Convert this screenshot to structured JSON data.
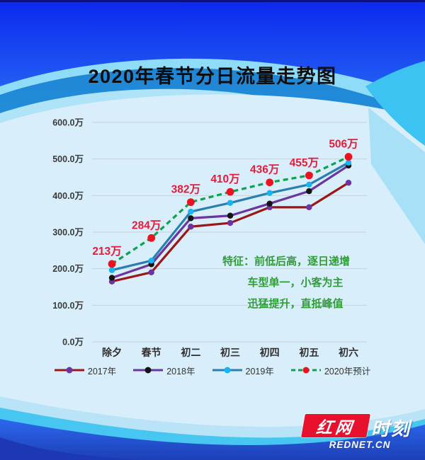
{
  "page": {
    "title": "2020年春节分日流量走势图"
  },
  "chart_data": {
    "type": "line",
    "title": "2020年春节分日流量走势图",
    "categories": [
      "除夕",
      "春节",
      "初二",
      "初三",
      "初四",
      "初五",
      "初六"
    ],
    "unit": "万",
    "ylim": [
      0,
      600
    ],
    "y_ticks": [
      "0.0万",
      "100.0万",
      "200.0万",
      "300.0万",
      "400.0万",
      "500.0万",
      "600.0万"
    ],
    "grid": true,
    "legend_position": "bottom",
    "series": [
      {
        "name": "2017年",
        "style": "solid",
        "color": "#9c1616",
        "marker_color": "#6a35a0",
        "values": [
          165,
          190,
          315,
          325,
          368,
          368,
          435
        ]
      },
      {
        "name": "2018年",
        "style": "solid",
        "color": "#6a35a0",
        "marker_color": "#141414",
        "values": [
          175,
          212,
          338,
          345,
          378,
          412,
          482
        ]
      },
      {
        "name": "2019年",
        "style": "solid",
        "color": "#2b7fb0",
        "marker_color": "#16b4f0",
        "values": [
          196,
          222,
          356,
          380,
          407,
          430,
          490
        ]
      },
      {
        "name": "2020年预计",
        "style": "dashed",
        "color": "#0ca24e",
        "marker_color": "#ee1220",
        "values": [
          213,
          284,
          382,
          410,
          436,
          455,
          506
        ],
        "data_labels": [
          "213万",
          "284万",
          "382万",
          "410万",
          "436万",
          "455万",
          "506万"
        ]
      }
    ]
  },
  "annotation": {
    "lines": [
      "特征：前低后高，逐日递增",
      "车型单一，小客为主",
      "迅猛提升，直抵峰值"
    ]
  },
  "colors": {
    "data_label_red": "#ea1a3a",
    "annotation_green": "#2f9e35",
    "logo_red": "#e8102c",
    "panel_light_blue": "#d9eefb",
    "top_blue": "#0c28ee"
  },
  "logo": {
    "brand_left": "红网",
    "brand_right": "时刻",
    "domain": "REDNET.CN"
  }
}
